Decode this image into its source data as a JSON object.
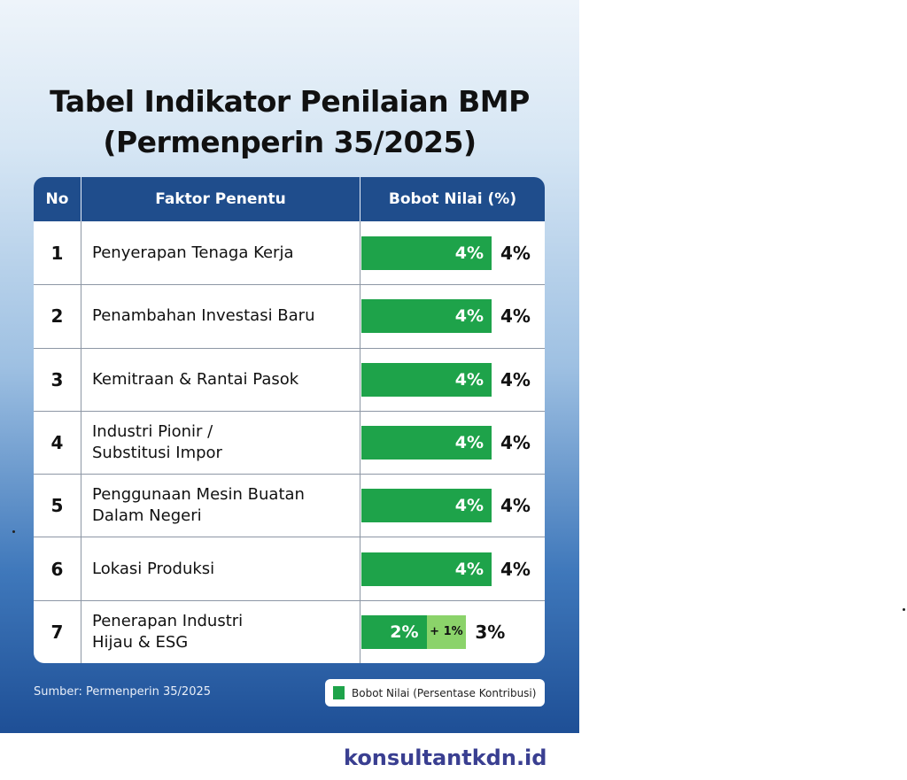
{
  "title_line1": "Tabel Indikator Penilaian BMP",
  "title_line2": "(Permenperin 35/2025)",
  "chart_data": {
    "type": "table",
    "columns": [
      "No",
      "Faktor Penentu",
      "Bobot Nilai (%)"
    ],
    "rows": [
      {
        "no": "1",
        "faktor": [
          "Penyerapan Tenaga Kerja"
        ],
        "value": 4,
        "bar_label": "4%",
        "total": "4%"
      },
      {
        "no": "2",
        "faktor": [
          "Penambahan Investasi Baru"
        ],
        "value": 4,
        "bar_label": "4%",
        "total": "4%"
      },
      {
        "no": "3",
        "faktor": [
          "Kemitraan & Rantai Pasok"
        ],
        "value": 4,
        "bar_label": "4%",
        "total": "4%"
      },
      {
        "no": "4",
        "faktor": [
          "Industri Pionir /",
          "Substitusi Impor"
        ],
        "value": 4,
        "bar_label": "4%",
        "total": "4%"
      },
      {
        "no": "5",
        "faktor": [
          "Penggunaan Mesin Buatan",
          "Dalam Negeri"
        ],
        "value": 4,
        "bar_label": "4%",
        "total": "4%"
      },
      {
        "no": "6",
        "faktor": [
          "Lokasi Produksi"
        ],
        "value": 4,
        "bar_label": "4%",
        "total": "4%"
      },
      {
        "no": "7",
        "faktor": [
          "Penerapan Industri",
          "Hijau & ESG"
        ],
        "value": 2,
        "bar_label": "2%",
        "extra": 1,
        "extra_label": "+ 1%",
        "total": "3%"
      }
    ],
    "max": 4,
    "colors": {
      "bar": "#1ea34a",
      "extra": "#8bd36a",
      "header": "#1f4d8c"
    }
  },
  "source": "Sumber: Permenperin 35/2025",
  "legend": "Bobot Nilai (Persentase Kontribusi)",
  "site": "konsultantkdn.id"
}
